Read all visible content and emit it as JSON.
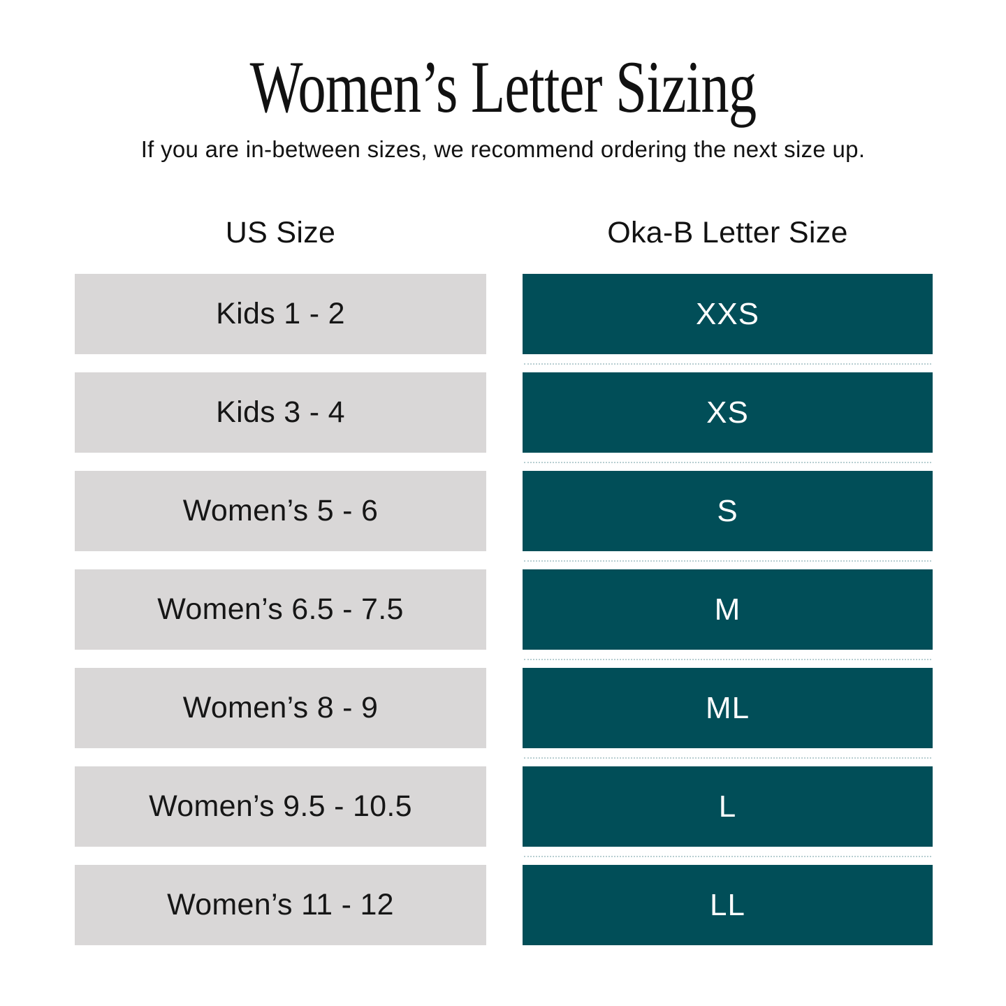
{
  "page": {
    "title": "Women’s Letter Sizing",
    "subtitle": "If you are in-between sizes, we recommend ordering the next size up."
  },
  "table": {
    "columns": [
      {
        "id": "us_size",
        "label": "US Size"
      },
      {
        "id": "letter_size",
        "label": "Oka-B Letter Size"
      }
    ],
    "rows": [
      {
        "us_size": "Kids 1 - 2",
        "letter_size": "XXS"
      },
      {
        "us_size": "Kids 3 - 4",
        "letter_size": "XS"
      },
      {
        "us_size": "Women’s 5 - 6",
        "letter_size": "S"
      },
      {
        "us_size": "Women’s 6.5 - 7.5",
        "letter_size": "M"
      },
      {
        "us_size": "Women’s 8 - 9",
        "letter_size": "ML"
      },
      {
        "us_size": "Women’s 9.5 - 10.5",
        "letter_size": "L"
      },
      {
        "us_size": "Women’s 11 - 12",
        "letter_size": "LL"
      }
    ]
  },
  "colors": {
    "accent_teal": "#014E58",
    "row_gray": "#D9D7D7",
    "text_black": "#141414",
    "text_white": "#FFFFFF"
  },
  "chart_data": {
    "type": "table",
    "title": "Women’s Letter Sizing",
    "subtitle": "If you are in-between sizes, we recommend ordering the next size up.",
    "columns": [
      "US Size",
      "Oka-B Letter Size"
    ],
    "rows": [
      [
        "Kids 1 - 2",
        "XXS"
      ],
      [
        "Kids 3 - 4",
        "XS"
      ],
      [
        "Women’s 5 - 6",
        "S"
      ],
      [
        "Women’s 6.5 - 7.5",
        "M"
      ],
      [
        "Women’s 8 - 9",
        "ML"
      ],
      [
        "Women’s 9.5 - 10.5",
        "L"
      ],
      [
        "Women’s 11 - 12",
        "LL"
      ]
    ],
    "layout_hints": {
      "us_size_cell_color": "#D9D7D7",
      "letter_size_cell_color": "#014E58",
      "grid": "off",
      "legend": "none"
    }
  }
}
